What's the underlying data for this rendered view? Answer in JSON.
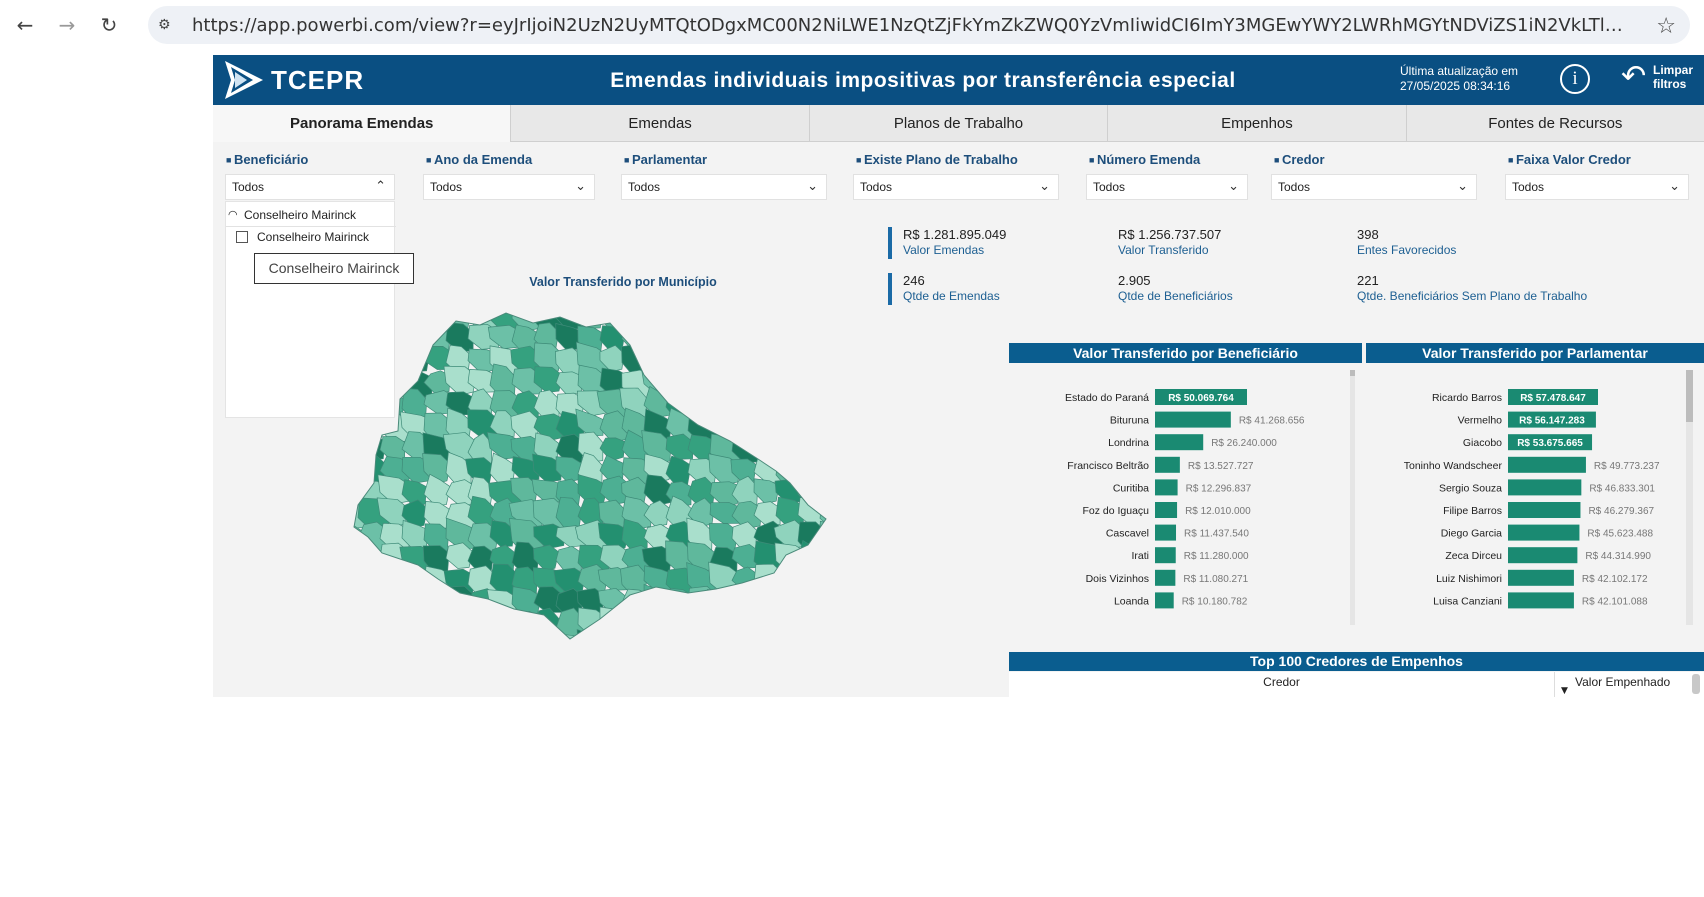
{
  "browser": {
    "url": "https://app.powerbi.com/view?r=eyJrIjoiN2UzN2UyMTQtODgxMC00N2NiLWE1NzQtZjFkYmZkZWQ0YzVmIiwidCI6ImY3MGEwYWY2LWRhMGYtNDViZS1iN2VkLTlmOGMxYjI0YmZkZiIsImMi...",
    "back_icon": "back-arrow-icon",
    "forward_icon": "forward-arrow-icon",
    "reload_icon": "reload-icon",
    "site_settings_icon": "site-settings-icon",
    "bookmark_icon": "star-icon"
  },
  "header": {
    "logo_text": "TCEPR",
    "title": "Emendas individuais impositivas por transferência especial",
    "update_line1": "Última atualização em",
    "update_line2": "27/05/2025 08:34:16",
    "info_glyph": "i",
    "clear_line1": "Limpar",
    "clear_line2": "filtros",
    "colors": {
      "header_bg": "#0a4f82",
      "accent": "#1a8a72"
    }
  },
  "tabs": [
    {
      "label": "Panorama Emendas",
      "active": true
    },
    {
      "label": "Emendas",
      "active": false
    },
    {
      "label": "Planos de Trabalho",
      "active": false
    },
    {
      "label": "Empenhos",
      "active": false
    },
    {
      "label": "Fontes de Recursos",
      "active": false
    }
  ],
  "filters": [
    {
      "label": "Beneficiário",
      "value": "Todos"
    },
    {
      "label": "Ano da Emenda",
      "value": "Todos"
    },
    {
      "label": "Parlamentar",
      "value": "Todos"
    },
    {
      "label": "Existe Plano de Trabalho",
      "value": "Todos"
    },
    {
      "label": "Número Emenda",
      "value": "Todos"
    },
    {
      "label": "Credor",
      "value": "Todos"
    },
    {
      "label": "Faixa Valor Credor",
      "value": "Todos"
    }
  ],
  "dropdown_open": {
    "search_text": "Conselheiro Mairinck",
    "option_label": "Conselheiro Mairinck",
    "tooltip": "Conselheiro Mairinck"
  },
  "map": {
    "title": "Valor Transferido por Município"
  },
  "kpis": [
    {
      "value": "R$ 1.281.895.049",
      "label": "Valor Emendas"
    },
    {
      "value": "R$ 1.256.737.507",
      "label": "Valor Transferido"
    },
    {
      "value": "398",
      "label": "Entes Favorecidos"
    },
    {
      "value": "246",
      "label": "Qtde de Emendas"
    },
    {
      "value": "2.905",
      "label": "Qtde de Beneficiários"
    },
    {
      "value": "221",
      "label": "Qtde. Beneficiários Sem Plano de Trabalho"
    }
  ],
  "chart_data": [
    {
      "type": "bar",
      "title": "Valor Transferido por Beneficiário",
      "categories": [
        "Estado do Paraná",
        "Bituruna",
        "Londrina",
        "Francisco Beltrão",
        "Curitiba",
        "Foz do Iguaçu",
        "Cascavel",
        "Irati",
        "Dois Vizinhos",
        "Loanda"
      ],
      "values": [
        50069764,
        41268656,
        26240000,
        13527727,
        12296837,
        12010000,
        11437540,
        11280000,
        11080271,
        10180782
      ],
      "labels": [
        "R$ 50.069.764",
        "R$ 41.268.656",
        "R$ 26.240.000",
        "R$ 13.527.727",
        "R$ 12.296.837",
        "R$ 12.010.000",
        "R$ 11.437.540",
        "R$ 11.280.000",
        "R$ 11.080.271",
        "R$ 10.180.782"
      ],
      "color": "#1a8a72"
    },
    {
      "type": "bar",
      "title": "Valor Transferido por Parlamentar",
      "categories": [
        "Ricardo Barros",
        "Vermelho",
        "Giacobo",
        "Toninho Wandscheer",
        "Sergio Souza",
        "Filipe Barros",
        "Diego Garcia",
        "Zeca Dirceu",
        "Luiz Nishimori",
        "Luisa Canziani"
      ],
      "values": [
        57478647,
        56147283,
        53675665,
        49773237,
        46833301,
        46279367,
        45623488,
        44314990,
        42102172,
        42101088
      ],
      "labels": [
        "R$ 57.478.647",
        "R$ 56.147.283",
        "R$ 53.675.665",
        "R$ 49.773.237",
        "R$ 46.833.301",
        "R$ 46.279.367",
        "R$ 45.623.488",
        "R$ 44.314.990",
        "R$ 42.102.172",
        "R$ 42.101.088"
      ],
      "color": "#1a8a72"
    }
  ],
  "table": {
    "title": "Top 100 Credores de Empenhos",
    "col_credor": "Credor",
    "col_valor": "Valor Empenhado",
    "sort_icon": "sort-descending-icon"
  }
}
